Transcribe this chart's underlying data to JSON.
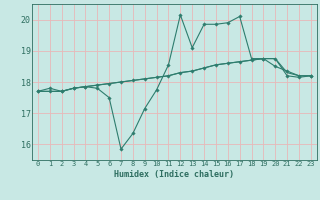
{
  "title": "",
  "xlabel": "Humidex (Indice chaleur)",
  "ylabel": "",
  "background_color": "#c8e8e4",
  "grid_color": "#e8b8b8",
  "line_color": "#2e7d6e",
  "tick_color": "#2e6e60",
  "x_values": [
    0,
    1,
    2,
    3,
    4,
    5,
    6,
    7,
    8,
    9,
    10,
    11,
    12,
    13,
    14,
    15,
    16,
    17,
    18,
    19,
    20,
    21,
    22,
    23
  ],
  "line1_y": [
    17.7,
    17.8,
    17.7,
    17.8,
    17.85,
    17.8,
    17.5,
    15.85,
    16.35,
    17.15,
    17.75,
    18.55,
    20.15,
    19.1,
    19.85,
    19.85,
    19.9,
    20.1,
    18.75,
    18.75,
    18.5,
    18.35,
    18.2,
    18.2
  ],
  "line2_y": [
    17.7,
    17.7,
    17.7,
    17.8,
    17.85,
    17.9,
    17.95,
    18.0,
    18.05,
    18.1,
    18.15,
    18.2,
    18.3,
    18.35,
    18.45,
    18.55,
    18.6,
    18.65,
    18.7,
    18.75,
    18.75,
    18.2,
    18.15,
    18.2
  ],
  "line3_y": [
    17.7,
    17.7,
    17.7,
    17.8,
    17.85,
    17.9,
    17.95,
    18.0,
    18.05,
    18.1,
    18.15,
    18.2,
    18.3,
    18.35,
    18.45,
    18.55,
    18.6,
    18.65,
    18.7,
    18.75,
    18.75,
    18.3,
    18.2,
    18.2
  ],
  "ylim": [
    15.5,
    20.5
  ],
  "yticks": [
    16,
    17,
    18,
    19,
    20
  ],
  "xlim": [
    -0.5,
    23.5
  ],
  "xticks": [
    0,
    1,
    2,
    3,
    4,
    5,
    6,
    7,
    8,
    9,
    10,
    11,
    12,
    13,
    14,
    15,
    16,
    17,
    18,
    19,
    20,
    21,
    22,
    23
  ]
}
